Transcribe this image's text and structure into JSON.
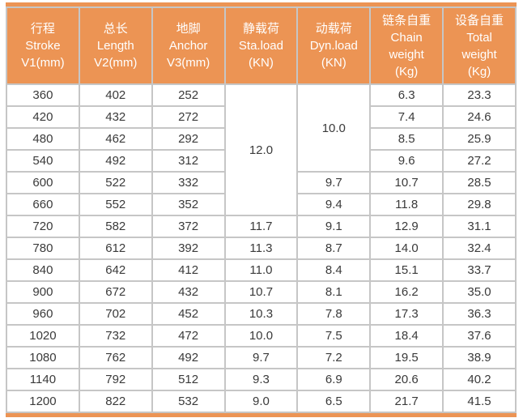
{
  "colors": {
    "header_bg": "#EC9454",
    "header_text": "#FFFFFF",
    "grid_line": "#C6C6C6",
    "body_text": "#3A3A3A",
    "row_bg": "#FFFFFF",
    "accent_bar": "#EC9454"
  },
  "chart_data": {
    "type": "table",
    "headers": [
      {
        "lines": [
          "行程",
          "Stroke",
          "V1(mm)"
        ]
      },
      {
        "lines": [
          "总长",
          "Length",
          "V2(mm)"
        ]
      },
      {
        "lines": [
          "地脚",
          "Anchor",
          "V3(mm)"
        ]
      },
      {
        "lines": [
          "静载荷",
          "Sta.load",
          "(KN)"
        ]
      },
      {
        "lines": [
          "动载荷",
          "Dyn.load",
          "(KN)"
        ]
      },
      {
        "lines": [
          "链条自重",
          "Chain",
          "weight",
          "(Kg)"
        ]
      },
      {
        "lines": [
          "设备自重",
          "Total",
          "weight",
          "(Kg)"
        ]
      }
    ],
    "merged_cells": [
      {
        "column": "Sta.load (KN)",
        "value": "12.0",
        "row_start": 1,
        "row_span": 6
      },
      {
        "column": "Dyn.load (KN)",
        "value": "10.0",
        "row_start": 1,
        "row_span": 4
      }
    ],
    "rows": [
      {
        "cells": [
          "360",
          "402",
          "252",
          "12.0",
          "10.0",
          "6.3",
          "23.3"
        ]
      },
      {
        "cells": [
          "420",
          "432",
          "272",
          "7.4",
          "24.6"
        ]
      },
      {
        "cells": [
          "480",
          "462",
          "292",
          "8.5",
          "25.9"
        ]
      },
      {
        "cells": [
          "540",
          "492",
          "312",
          "9.6",
          "27.2"
        ]
      },
      {
        "cells": [
          "600",
          "522",
          "332",
          "9.7",
          "10.7",
          "28.5"
        ]
      },
      {
        "cells": [
          "660",
          "552",
          "352",
          "9.4",
          "11.8",
          "29.8"
        ]
      },
      {
        "cells": [
          "720",
          "582",
          "372",
          "11.7",
          "9.1",
          "12.9",
          "31.1"
        ]
      },
      {
        "cells": [
          "780",
          "612",
          "392",
          "11.3",
          "8.7",
          "14.0",
          "32.4"
        ]
      },
      {
        "cells": [
          "840",
          "642",
          "412",
          "11.0",
          "8.4",
          "15.1",
          "33.7"
        ]
      },
      {
        "cells": [
          "900",
          "672",
          "432",
          "10.7",
          "8.1",
          "16.2",
          "35.0"
        ]
      },
      {
        "cells": [
          "960",
          "702",
          "452",
          "10.3",
          "7.8",
          "17.3",
          "36.3"
        ]
      },
      {
        "cells": [
          "1020",
          "732",
          "472",
          "10.0",
          "7.5",
          "18.4",
          "37.6"
        ]
      },
      {
        "cells": [
          "1080",
          "762",
          "492",
          "9.7",
          "7.2",
          "19.5",
          "38.9"
        ]
      },
      {
        "cells": [
          "1140",
          "792",
          "512",
          "9.3",
          "6.9",
          "20.6",
          "40.2"
        ]
      },
      {
        "cells": [
          "1200",
          "822",
          "532",
          "9.0",
          "6.5",
          "21.7",
          "41.5"
        ]
      }
    ]
  }
}
